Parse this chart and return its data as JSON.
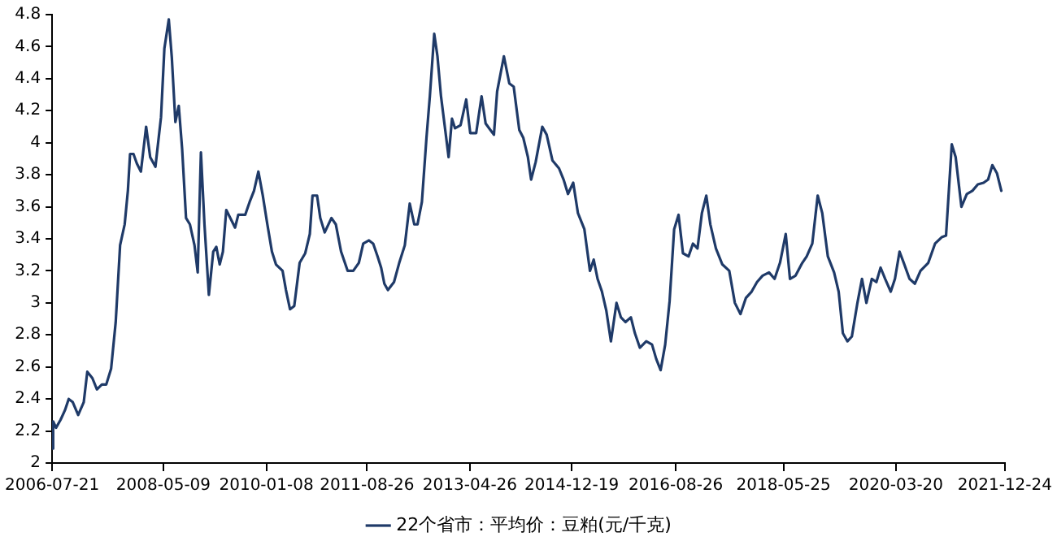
{
  "chart_data": {
    "type": "line",
    "legend": "bottom",
    "grid": false,
    "marker": "none",
    "line_style": "solid",
    "xlim": [
      "2006-07-21",
      "2021-12-24"
    ],
    "xticks": [
      "2006-07-21",
      "2008-05-09",
      "2010-01-08",
      "2011-08-26",
      "2013-04-26",
      "2014-12-19",
      "2016-08-26",
      "2018-05-25",
      "2020-03-20",
      "2021-12-24"
    ],
    "ylim": [
      2,
      4.8
    ],
    "yticks": [
      2,
      2.2,
      2.4,
      2.6,
      2.8,
      3,
      3.2,
      3.4,
      3.6,
      3.8,
      4,
      4.2,
      4.4,
      4.6,
      4.8
    ],
    "x": [
      "2006-07-21",
      "2006-07-27",
      "2006-08-13",
      "2006-09-09",
      "2006-10-05",
      "2006-10-27",
      "2006-11-20",
      "2006-12-22",
      "2007-01-24",
      "2007-02-14",
      "2007-03-16",
      "2007-04-12",
      "2007-05-11",
      "2007-06-06",
      "2007-07-05",
      "2007-08-01",
      "2007-08-27",
      "2007-09-23",
      "2007-10-12",
      "2007-10-25",
      "2007-11-14",
      "2007-12-04",
      "2007-12-28",
      "2008-01-28",
      "2008-02-21",
      "2008-03-23",
      "2008-04-25",
      "2008-05-15",
      "2008-06-10",
      "2008-06-28",
      "2008-07-19",
      "2008-08-08",
      "2008-08-28",
      "2008-09-20",
      "2008-10-13",
      "2008-11-09",
      "2008-11-28",
      "2008-12-17",
      "2009-01-07",
      "2009-02-02",
      "2009-02-28",
      "2009-03-18",
      "2009-04-07",
      "2009-04-26",
      "2009-05-16",
      "2009-06-18",
      "2009-07-07",
      "2009-07-26",
      "2009-09-05",
      "2009-10-01",
      "2009-10-27",
      "2009-11-22",
      "2009-12-18",
      "2010-01-14",
      "2010-02-10",
      "2010-03-06",
      "2010-04-14",
      "2010-05-04",
      "2010-05-28",
      "2010-06-22",
      "2010-07-24",
      "2010-08-26",
      "2010-09-22",
      "2010-10-08",
      "2010-11-04",
      "2010-11-23",
      "2010-12-19",
      "2011-01-28",
      "2011-02-23",
      "2011-03-26",
      "2011-05-04",
      "2011-06-06",
      "2011-07-09",
      "2011-08-04",
      "2011-09-07",
      "2011-10-02",
      "2011-10-28",
      "2011-11-18",
      "2011-12-07",
      "2011-12-28",
      "2012-02-02",
      "2012-03-04",
      "2012-04-06",
      "2012-05-05",
      "2012-06-01",
      "2012-06-20",
      "2012-07-16",
      "2012-08-12",
      "2012-09-01",
      "2012-09-27",
      "2012-10-16",
      "2012-11-06",
      "2012-12-01",
      "2012-12-21",
      "2013-01-10",
      "2013-01-28",
      "2013-03-02",
      "2013-04-04",
      "2013-04-28",
      "2013-06-02",
      "2013-07-04",
      "2013-07-28",
      "2013-08-25",
      "2013-09-15",
      "2013-10-04",
      "2013-11-13",
      "2013-12-15",
      "2014-01-10",
      "2014-02-12",
      "2014-03-08",
      "2014-04-04",
      "2014-04-23",
      "2014-05-20",
      "2014-06-28",
      "2014-07-24",
      "2014-08-27",
      "2014-10-05",
      "2014-11-01",
      "2014-11-27",
      "2014-12-28",
      "2015-01-25",
      "2015-03-04",
      "2015-04-06",
      "2015-04-28",
      "2015-05-21",
      "2015-06-16",
      "2015-07-12",
      "2015-08-08",
      "2015-09-10",
      "2015-10-06",
      "2015-11-02",
      "2015-12-04",
      "2015-12-28",
      "2016-01-26",
      "2016-03-04",
      "2016-04-07",
      "2016-05-02",
      "2016-05-28",
      "2016-06-24",
      "2016-07-20",
      "2016-08-16",
      "2016-09-11",
      "2016-10-07",
      "2016-11-09",
      "2016-12-05",
      "2017-01-01",
      "2017-01-27",
      "2017-02-22",
      "2017-03-18",
      "2017-04-20",
      "2017-05-28",
      "2017-07-08",
      "2017-08-10",
      "2017-09-12",
      "2017-10-14",
      "2017-11-17",
      "2017-12-19",
      "2018-01-21",
      "2018-02-28",
      "2018-04-02",
      "2018-05-04",
      "2018-06-07",
      "2018-07-02",
      "2018-08-04",
      "2018-09-13",
      "2018-10-09",
      "2018-11-11",
      "2018-12-13",
      "2019-01-09",
      "2019-02-11",
      "2019-03-20",
      "2019-04-16",
      "2019-05-11",
      "2019-06-07",
      "2019-07-03",
      "2019-08-05",
      "2019-09-01",
      "2019-09-27",
      "2019-10-29",
      "2019-11-25",
      "2019-12-20",
      "2020-01-16",
      "2020-02-18",
      "2020-03-14",
      "2020-04-10",
      "2020-05-05",
      "2020-06-08",
      "2020-07-10",
      "2020-08-12",
      "2020-09-27",
      "2020-11-06",
      "2020-12-15",
      "2021-01-10",
      "2021-02-13",
      "2021-03-08",
      "2021-04-11",
      "2021-05-13",
      "2021-06-15",
      "2021-07-17",
      "2021-08-20",
      "2021-09-16",
      "2021-10-11",
      "2021-11-07",
      "2021-12-03"
    ],
    "series": [
      {
        "name": "22个省市：平均价：豆粕(元/千克)",
        "color": "#1f3a68",
        "values": [
          2.09,
          2.26,
          2.22,
          2.27,
          2.33,
          2.4,
          2.38,
          2.3,
          2.38,
          2.57,
          2.53,
          2.46,
          2.49,
          2.49,
          2.59,
          2.88,
          3.36,
          3.49,
          3.7,
          3.93,
          3.93,
          3.87,
          3.82,
          4.1,
          3.91,
          3.85,
          4.16,
          4.59,
          4.77,
          4.53,
          4.13,
          4.23,
          3.96,
          3.53,
          3.49,
          3.36,
          3.19,
          3.94,
          3.49,
          3.05,
          3.32,
          3.35,
          3.24,
          3.32,
          3.58,
          3.51,
          3.47,
          3.55,
          3.55,
          3.63,
          3.7,
          3.82,
          3.67,
          3.49,
          3.32,
          3.24,
          3.2,
          3.08,
          2.96,
          2.98,
          3.25,
          3.31,
          3.43,
          3.67,
          3.67,
          3.53,
          3.44,
          3.53,
          3.49,
          3.32,
          3.2,
          3.2,
          3.25,
          3.37,
          3.39,
          3.37,
          3.29,
          3.22,
          3.12,
          3.08,
          3.13,
          3.25,
          3.36,
          3.62,
          3.49,
          3.49,
          3.63,
          4.03,
          4.29,
          4.68,
          4.54,
          4.29,
          4.08,
          3.91,
          4.15,
          4.09,
          4.11,
          4.27,
          4.06,
          4.06,
          4.29,
          4.12,
          4.08,
          4.05,
          4.32,
          4.54,
          4.37,
          4.35,
          4.08,
          4.03,
          3.91,
          3.77,
          3.88,
          4.1,
          4.05,
          3.89,
          3.84,
          3.77,
          3.68,
          3.75,
          3.56,
          3.46,
          3.2,
          3.27,
          3.15,
          3.07,
          2.95,
          2.76,
          3.0,
          2.91,
          2.88,
          2.91,
          2.81,
          2.72,
          2.76,
          2.74,
          2.65,
          2.58,
          2.74,
          3.01,
          3.46,
          3.55,
          3.31,
          3.29,
          3.37,
          3.34,
          3.56,
          3.67,
          3.49,
          3.34,
          3.24,
          3.2,
          3.0,
          2.93,
          3.03,
          3.07,
          3.13,
          3.17,
          3.19,
          3.15,
          3.25,
          3.43,
          3.15,
          3.17,
          3.25,
          3.29,
          3.37,
          3.67,
          3.56,
          3.29,
          3.19,
          3.07,
          2.81,
          2.76,
          2.79,
          3.0,
          3.15,
          3.0,
          3.15,
          3.13,
          3.22,
          3.15,
          3.07,
          3.15,
          3.32,
          3.25,
          3.15,
          3.12,
          3.2,
          3.25,
          3.37,
          3.41,
          3.42,
          3.99,
          3.91,
          3.6,
          3.68,
          3.7,
          3.74,
          3.75,
          3.77,
          3.86,
          3.81,
          3.7
        ]
      }
    ]
  }
}
